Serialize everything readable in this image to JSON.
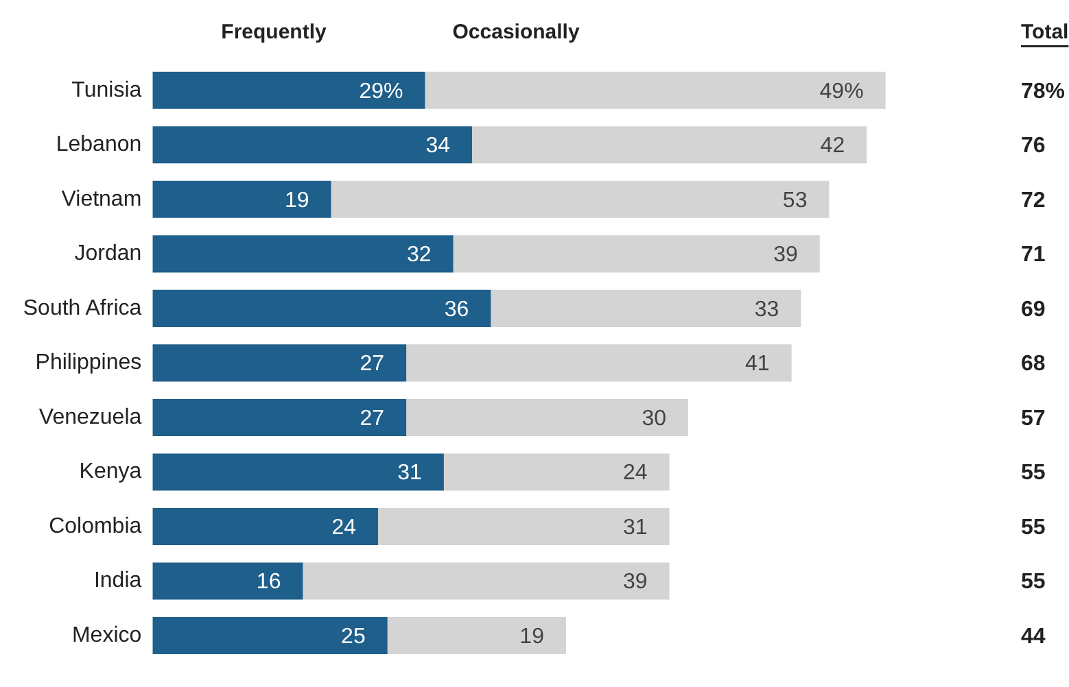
{
  "chart_data": {
    "type": "bar",
    "orientation": "horizontal",
    "stacked": true,
    "categories": [
      "Tunisia",
      "Lebanon",
      "Vietnam",
      "Jordan",
      "South Africa",
      "Philippines",
      "Venezuela",
      "Kenya",
      "Colombia",
      "India",
      "Mexico"
    ],
    "series": [
      {
        "name": "Frequently",
        "color": "#1f5f8b",
        "values": [
          29,
          34,
          19,
          32,
          36,
          27,
          27,
          31,
          24,
          16,
          25
        ],
        "value_labels": [
          "29%",
          "34",
          "19",
          "32",
          "36",
          "27",
          "27",
          "31",
          "24",
          "16",
          "25"
        ]
      },
      {
        "name": "Occasionally",
        "color": "#d4d4d4",
        "values": [
          49,
          42,
          53,
          39,
          33,
          41,
          30,
          24,
          31,
          39,
          19
        ],
        "value_labels": [
          "49%",
          "42",
          "53",
          "39",
          "33",
          "41",
          "30",
          "24",
          "31",
          "39",
          "19"
        ]
      }
    ],
    "annotations": [
      "Total",
      "78%",
      "76",
      "72",
      "71",
      "69",
      "68",
      "57",
      "55",
      "55",
      "55",
      "44"
    ]
  }
}
